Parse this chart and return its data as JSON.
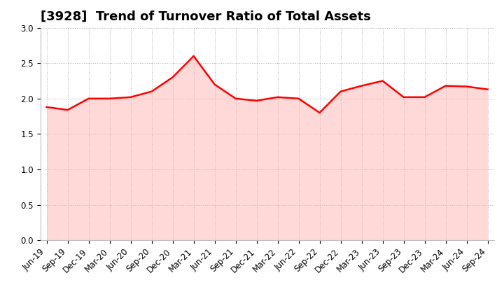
{
  "title": "[3928]  Trend of Turnover Ratio of Total Assets",
  "x_labels": [
    "Jun-19",
    "Sep-19",
    "Dec-19",
    "Mar-20",
    "Jun-20",
    "Sep-20",
    "Dec-20",
    "Mar-21",
    "Jun-21",
    "Sep-21",
    "Dec-21",
    "Mar-22",
    "Jun-22",
    "Sep-22",
    "Dec-22",
    "Mar-23",
    "Jun-23",
    "Sep-23",
    "Dec-23",
    "Mar-24",
    "Jun-24",
    "Sep-24"
  ],
  "values": [
    1.88,
    1.84,
    2.0,
    2.0,
    2.02,
    2.1,
    2.3,
    2.6,
    2.2,
    2.0,
    1.97,
    2.02,
    2.0,
    1.8,
    2.1,
    2.18,
    2.25,
    2.02,
    2.02,
    2.18,
    2.17,
    2.13
  ],
  "line_color": "#ff0000",
  "fill_color": "#ffb3b3",
  "ylim": [
    0.0,
    3.0
  ],
  "yticks": [
    0.0,
    0.5,
    1.0,
    1.5,
    2.0,
    2.5,
    3.0
  ],
  "grid_color": "#999999",
  "background_color": "#ffffff",
  "title_fontsize": 13,
  "tick_fontsize": 8.5
}
